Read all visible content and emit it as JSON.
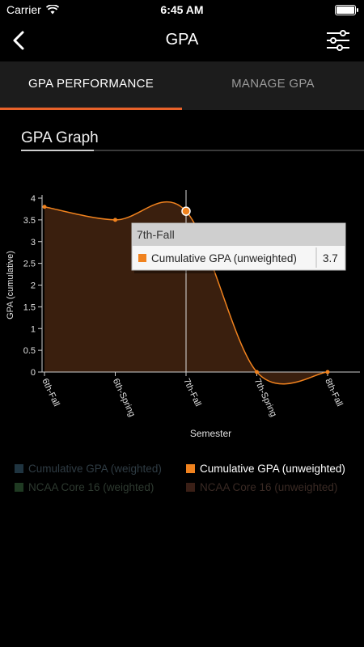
{
  "status": {
    "carrier": "Carrier",
    "time": "6:45 AM"
  },
  "nav": {
    "title": "GPA"
  },
  "tabs": [
    {
      "label": "GPA PERFORMANCE"
    },
    {
      "label": "MANAGE GPA"
    }
  ],
  "section": {
    "title": "GPA Graph"
  },
  "tooltip": {
    "title": "7th-Fall",
    "series": "Cumulative GPA (unweighted)",
    "value": "3.7"
  },
  "legend": [
    {
      "label": "Cumulative GPA (weighted)",
      "color": "#1f3440",
      "active": false
    },
    {
      "label": "Cumulative GPA (unweighted)",
      "color": "#f0821e",
      "active": true
    },
    {
      "label": "NCAA Core 16 (weighted)",
      "color": "#1f3a22",
      "active": false
    },
    {
      "label": "NCAA Core 16 (unweighted)",
      "color": "#3a1f16",
      "active": false
    }
  ],
  "colors": {
    "accent": "#e8622a",
    "line": "#f0821e",
    "area": "#3a1f0e"
  },
  "chart_data": {
    "type": "area",
    "categories": [
      "6th-Fall",
      "6th-Spring",
      "7th-Fall",
      "7th-Spring",
      "8th-Fall"
    ],
    "x_positions": [
      0,
      1,
      2,
      3,
      4
    ],
    "series": [
      {
        "name": "Cumulative GPA (unweighted)",
        "x": [
          0,
          1,
          2,
          3,
          4
        ],
        "values": [
          3.8,
          3.5,
          3.7,
          0,
          0
        ]
      }
    ],
    "xlabel": "Semester",
    "ylabel": "GPA (cumulative)",
    "yticks": [
      0,
      0.5,
      1,
      1.5,
      2,
      2.5,
      3,
      3.5,
      4
    ],
    "ylim": [
      0,
      4
    ],
    "highlight_index": 2
  }
}
